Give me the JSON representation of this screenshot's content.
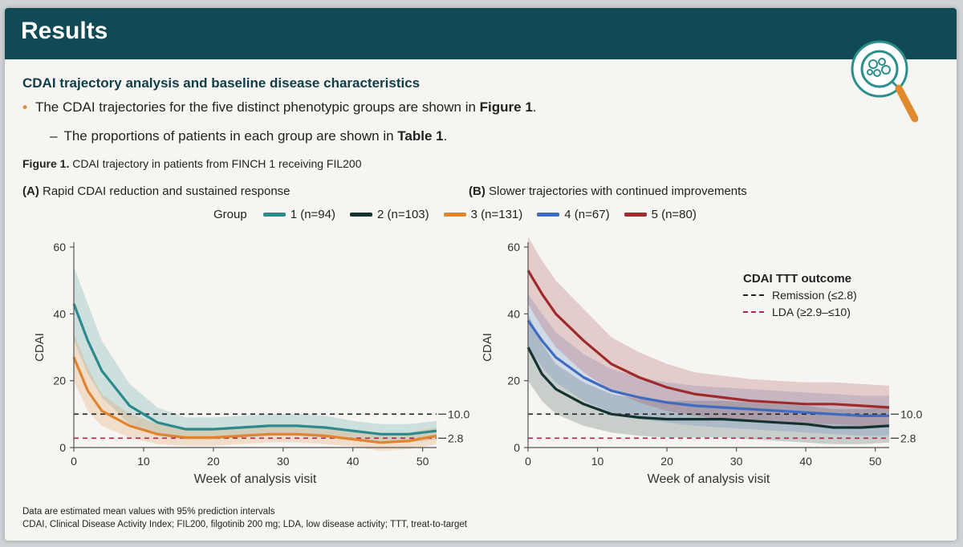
{
  "header": {
    "title": "Results"
  },
  "section": {
    "subtitle": "CDAI trajectory analysis and baseline disease characteristics",
    "bullet1_pre": "The CDAI trajectories for the five distinct phenotypic groups are shown in ",
    "bullet1_bold": "Figure 1",
    "bullet1_post": ".",
    "bullet2_pre": "The proportions of patients in each group are shown in ",
    "bullet2_bold": "Table 1",
    "bullet2_post": "."
  },
  "figure": {
    "caption_bold": "Figure 1.",
    "caption_rest": " CDAI trajectory in patients from FINCH 1 receiving FIL200",
    "panel_a_letter": "(A)",
    "panel_a_title": " Rapid CDAI reduction and sustained response",
    "panel_b_letter": "(B)",
    "panel_b_title": " Slower trajectories with continued improvements"
  },
  "legend": {
    "title": "Group",
    "items": [
      {
        "label": "1 (n=94)",
        "color": "#2c8a8c"
      },
      {
        "label": "2 (n=103)",
        "color": "#14322f"
      },
      {
        "label": "3 (n=131)",
        "color": "#e0842e"
      },
      {
        "label": "4 (n=67)",
        "color": "#3f6cc0"
      },
      {
        "label": "5 (n=80)",
        "color": "#9e2a2b"
      }
    ]
  },
  "ttt_legend": {
    "title": "CDAI TTT outcome",
    "remission": "Remission (≤2.8)",
    "lda": "LDA (≥2.9–≤10)"
  },
  "footnotes": {
    "line1": "Data are estimated mean values with 95% prediction intervals",
    "line2": "CDAI, Clinical Disease Activity Index; FIL200, filgotinib 200 mg; LDA, low disease activity; TTT, treat-to-target"
  },
  "chart_data": [
    {
      "type": "line",
      "panel": "A",
      "ylabel": "CDAI",
      "xlabel": "Week of analysis visit",
      "xlim": [
        0,
        52
      ],
      "ylim": [
        0,
        60
      ],
      "xticks": [
        "0",
        "10",
        "20",
        "30",
        "40",
        "50"
      ],
      "yticks": [
        "0",
        "20",
        "40",
        "60"
      ],
      "reference_lines": [
        {
          "y": 10.0,
          "label": "10.0",
          "style": "dashed",
          "color": "#222222"
        },
        {
          "y": 2.8,
          "label": "2.8",
          "style": "dashed",
          "color": "#b0245a"
        }
      ],
      "x": [
        0,
        2,
        4,
        8,
        12,
        16,
        20,
        24,
        28,
        32,
        36,
        40,
        44,
        48,
        52
      ],
      "series": [
        {
          "name": "1 (n=94)",
          "color": "#2c8a8c",
          "values": [
            43,
            32,
            23,
            12.5,
            7.5,
            5.5,
            5.5,
            6,
            6.5,
            6.5,
            6,
            5,
            4,
            4,
            5
          ],
          "lower": [
            32,
            22,
            15,
            7,
            3.5,
            2.5,
            2.5,
            3,
            3.5,
            3.5,
            3,
            2.5,
            1.5,
            1.5,
            2.5
          ],
          "upper": [
            54,
            43,
            32,
            19,
            12,
            9,
            9,
            9.5,
            10,
            10,
            9.5,
            8,
            7,
            7,
            8
          ]
        },
        {
          "name": "3 (n=131)",
          "color": "#e0842e",
          "values": [
            27,
            17,
            11,
            6.5,
            4,
            3,
            3,
            3.5,
            4,
            4,
            3.5,
            2.5,
            1.5,
            2,
            3.5
          ],
          "lower": [
            20,
            11,
            6.5,
            3,
            1,
            0.5,
            0.5,
            1,
            1.5,
            1.5,
            1,
            0.3,
            -1,
            -0.5,
            1
          ],
          "upper": [
            34,
            24,
            16,
            10,
            7,
            5.5,
            5.5,
            6,
            6.5,
            6.5,
            6,
            5,
            4,
            4.5,
            6
          ]
        }
      ]
    },
    {
      "type": "line",
      "panel": "B",
      "ylabel": "CDAI",
      "xlabel": "Week of analysis visit",
      "xlim": [
        0,
        52
      ],
      "ylim": [
        0,
        60
      ],
      "xticks": [
        "0",
        "10",
        "20",
        "30",
        "40",
        "50"
      ],
      "yticks": [
        "0",
        "20",
        "40",
        "60"
      ],
      "reference_lines": [
        {
          "y": 10.0,
          "label": "10.0",
          "style": "dashed",
          "color": "#222222"
        },
        {
          "y": 2.8,
          "label": "2.8",
          "style": "dashed",
          "color": "#b0245a"
        }
      ],
      "x": [
        0,
        2,
        4,
        8,
        12,
        16,
        20,
        24,
        28,
        32,
        36,
        40,
        44,
        48,
        52
      ],
      "series": [
        {
          "name": "2 (n=103)",
          "color": "#14322f",
          "values": [
            30,
            22,
            17.5,
            13,
            10,
            9,
            8.5,
            8.5,
            8.5,
            8,
            7.5,
            7,
            6,
            6,
            6.5
          ],
          "lower": [
            20,
            14,
            10,
            6.5,
            4.5,
            3.5,
            3,
            3,
            3,
            2.5,
            2,
            1.5,
            1,
            1,
            1.5
          ],
          "upper": [
            40,
            31,
            25,
            19.5,
            16,
            14.5,
            14,
            14,
            14,
            13.5,
            13,
            12.5,
            11.5,
            11.5,
            12
          ]
        },
        {
          "name": "4 (n=67)",
          "color": "#3f6cc0",
          "values": [
            38,
            32,
            27,
            21,
            17,
            15,
            13.5,
            12.5,
            12,
            11.5,
            11,
            10.5,
            10,
            9.5,
            9.5
          ],
          "lower": [
            30,
            24,
            19.5,
            14,
            10.5,
            8.5,
            7.5,
            6.5,
            6,
            5.5,
            5,
            4.5,
            4,
            3.5,
            3.5
          ],
          "upper": [
            46,
            40,
            34.5,
            28,
            23.5,
            21,
            19.5,
            18.5,
            18,
            17.5,
            17,
            16.5,
            16,
            15.5,
            15.5
          ]
        },
        {
          "name": "5 (n=80)",
          "color": "#9e2a2b",
          "values": [
            53,
            46,
            40,
            32,
            25,
            21,
            18,
            16,
            15,
            14,
            13.5,
            13,
            13,
            12.5,
            12
          ],
          "lower": [
            43,
            36,
            30,
            22.5,
            17,
            13.5,
            11,
            9.5,
            8.5,
            8,
            7.5,
            7,
            7,
            6.5,
            6
          ],
          "upper": [
            63,
            56,
            50,
            41.5,
            33,
            28.5,
            25,
            22.5,
            21.5,
            20.5,
            20,
            19.5,
            19.5,
            19,
            18.5
          ]
        }
      ]
    }
  ]
}
